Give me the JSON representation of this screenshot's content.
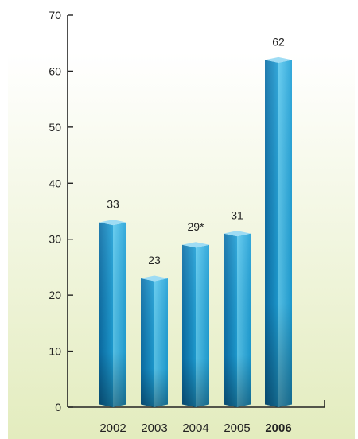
{
  "chart_data": {
    "type": "bar",
    "categories": [
      "2002",
      "2003",
      "2004",
      "2005",
      "2006"
    ],
    "values": [
      33,
      23,
      29,
      31,
      62
    ],
    "data_labels": [
      "33",
      "23",
      "29*",
      "31",
      "62"
    ],
    "highlight_category": "2006",
    "title": "",
    "xlabel": "",
    "ylabel": "",
    "ylim": [
      0,
      70
    ],
    "yticks": [
      "0",
      "10",
      "20",
      "30",
      "40",
      "50",
      "60",
      "70"
    ],
    "grid": false,
    "legend": "none",
    "colors": {
      "bar_main": "#1e9fd6",
      "bar_light": "#5ac8ee",
      "bar_dark": "#0b6ea6",
      "bar_top": "#9edcf4",
      "axis": "#222222",
      "highlight_label": "#2b4b7c",
      "background_gradient_top": "#ffffff",
      "background_gradient_bottom": "#e3ecbe"
    }
  }
}
